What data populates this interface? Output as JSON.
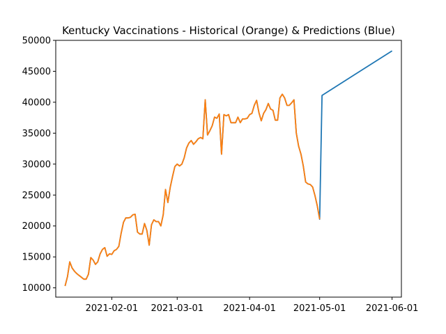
{
  "chart_data": {
    "type": "line",
    "title": "Kentucky Vaccinations - Historical (Orange) & Predictions (Blue)",
    "xlabel": "",
    "ylabel": "",
    "x_axis_type": "date",
    "xlim": [
      "2021-01-08",
      "2021-06-05"
    ],
    "ylim": [
      8500,
      50000
    ],
    "x_ticks": [
      "2021-02-01",
      "2021-03-01",
      "2021-04-01",
      "2021-05-01",
      "2021-06-01"
    ],
    "y_ticks": [
      10000,
      15000,
      20000,
      25000,
      30000,
      35000,
      40000,
      45000,
      50000
    ],
    "grid": false,
    "legend": "none",
    "series": [
      {
        "color": "#1f77b4",
        "points": [
          [
            "2021-01-12",
            10300
          ],
          [
            "2021-01-13",
            11800
          ],
          [
            "2021-01-14",
            14200
          ],
          [
            "2021-01-15",
            13200
          ],
          [
            "2021-01-16",
            12700
          ],
          [
            "2021-01-17",
            12300
          ],
          [
            "2021-01-18",
            12000
          ],
          [
            "2021-01-19",
            11700
          ],
          [
            "2021-01-20",
            11400
          ],
          [
            "2021-01-21",
            11400
          ],
          [
            "2021-01-22",
            12200
          ],
          [
            "2021-01-23",
            14900
          ],
          [
            "2021-01-24",
            14500
          ],
          [
            "2021-01-25",
            13800
          ],
          [
            "2021-01-26",
            14200
          ],
          [
            "2021-01-27",
            15500
          ],
          [
            "2021-01-28",
            16200
          ],
          [
            "2021-01-29",
            16500
          ],
          [
            "2021-01-30",
            15100
          ],
          [
            "2021-01-31",
            15500
          ],
          [
            "2021-02-01",
            15400
          ],
          [
            "2021-02-02",
            16000
          ],
          [
            "2021-02-03",
            16200
          ],
          [
            "2021-02-04",
            16700
          ],
          [
            "2021-02-05",
            18800
          ],
          [
            "2021-02-06",
            20600
          ],
          [
            "2021-02-07",
            21300
          ],
          [
            "2021-02-08",
            21300
          ],
          [
            "2021-02-09",
            21400
          ],
          [
            "2021-02-10",
            21800
          ],
          [
            "2021-02-11",
            21900
          ],
          [
            "2021-02-12",
            19000
          ],
          [
            "2021-02-13",
            18700
          ],
          [
            "2021-02-14",
            18700
          ],
          [
            "2021-02-15",
            20400
          ],
          [
            "2021-02-16",
            19300
          ],
          [
            "2021-02-17",
            16900
          ],
          [
            "2021-02-18",
            20200
          ],
          [
            "2021-02-19",
            21000
          ],
          [
            "2021-02-20",
            20700
          ],
          [
            "2021-02-21",
            20700
          ],
          [
            "2021-02-22",
            20000
          ],
          [
            "2021-02-23",
            21800
          ],
          [
            "2021-02-24",
            25900
          ],
          [
            "2021-02-25",
            23800
          ],
          [
            "2021-02-26",
            26200
          ],
          [
            "2021-02-27",
            28000
          ],
          [
            "2021-02-28",
            29600
          ],
          [
            "2021-03-01",
            30000
          ],
          [
            "2021-03-02",
            29700
          ],
          [
            "2021-03-03",
            30000
          ],
          [
            "2021-03-04",
            31000
          ],
          [
            "2021-03-05",
            32600
          ],
          [
            "2021-03-06",
            33400
          ],
          [
            "2021-03-07",
            33800
          ],
          [
            "2021-03-08",
            33200
          ],
          [
            "2021-03-09",
            33600
          ],
          [
            "2021-03-10",
            34100
          ],
          [
            "2021-03-11",
            34300
          ],
          [
            "2021-03-12",
            34100
          ],
          [
            "2021-03-13",
            40400
          ],
          [
            "2021-03-14",
            34700
          ],
          [
            "2021-03-15",
            35400
          ],
          [
            "2021-03-16",
            36200
          ],
          [
            "2021-03-17",
            37600
          ],
          [
            "2021-03-18",
            37400
          ],
          [
            "2021-03-19",
            38100
          ],
          [
            "2021-03-20",
            31600
          ],
          [
            "2021-03-21",
            38000
          ],
          [
            "2021-03-22",
            37800
          ],
          [
            "2021-03-23",
            38000
          ],
          [
            "2021-03-24",
            36700
          ],
          [
            "2021-03-25",
            36700
          ],
          [
            "2021-03-26",
            36700
          ],
          [
            "2021-03-27",
            37600
          ],
          [
            "2021-03-28",
            36700
          ],
          [
            "2021-03-29",
            37300
          ],
          [
            "2021-03-30",
            37300
          ],
          [
            "2021-03-31",
            37400
          ],
          [
            "2021-04-01",
            38000
          ],
          [
            "2021-04-02",
            38200
          ],
          [
            "2021-04-03",
            39500
          ],
          [
            "2021-04-04",
            40300
          ],
          [
            "2021-04-05",
            38300
          ],
          [
            "2021-04-06",
            37000
          ],
          [
            "2021-04-07",
            38200
          ],
          [
            "2021-04-08",
            38800
          ],
          [
            "2021-04-09",
            39800
          ],
          [
            "2021-04-10",
            38900
          ],
          [
            "2021-04-11",
            38700
          ],
          [
            "2021-04-12",
            37100
          ],
          [
            "2021-04-13",
            37100
          ],
          [
            "2021-04-14",
            40700
          ],
          [
            "2021-04-15",
            41300
          ],
          [
            "2021-04-16",
            40700
          ],
          [
            "2021-04-17",
            39500
          ],
          [
            "2021-04-18",
            39500
          ],
          [
            "2021-04-19",
            39900
          ],
          [
            "2021-04-20",
            40400
          ],
          [
            "2021-04-21",
            35000
          ],
          [
            "2021-04-22",
            32900
          ],
          [
            "2021-04-23",
            31600
          ],
          [
            "2021-04-24",
            29700
          ],
          [
            "2021-04-25",
            27100
          ],
          [
            "2021-04-26",
            26800
          ],
          [
            "2021-04-27",
            26700
          ],
          [
            "2021-04-28",
            26300
          ],
          [
            "2021-04-29",
            24900
          ],
          [
            "2021-04-30",
            23200
          ],
          [
            "2021-05-01",
            21100
          ],
          [
            "2021-05-02",
            41100
          ],
          [
            "2021-06-01",
            48300
          ]
        ]
      },
      {
        "color": "#ff7f0e",
        "points": [
          [
            "2021-01-12",
            10300
          ],
          [
            "2021-01-13",
            11800
          ],
          [
            "2021-01-14",
            14200
          ],
          [
            "2021-01-15",
            13200
          ],
          [
            "2021-01-16",
            12700
          ],
          [
            "2021-01-17",
            12300
          ],
          [
            "2021-01-18",
            12000
          ],
          [
            "2021-01-19",
            11700
          ],
          [
            "2021-01-20",
            11400
          ],
          [
            "2021-01-21",
            11400
          ],
          [
            "2021-01-22",
            12200
          ],
          [
            "2021-01-23",
            14900
          ],
          [
            "2021-01-24",
            14500
          ],
          [
            "2021-01-25",
            13800
          ],
          [
            "2021-01-26",
            14200
          ],
          [
            "2021-01-27",
            15500
          ],
          [
            "2021-01-28",
            16200
          ],
          [
            "2021-01-29",
            16500
          ],
          [
            "2021-01-30",
            15100
          ],
          [
            "2021-01-31",
            15500
          ],
          [
            "2021-02-01",
            15400
          ],
          [
            "2021-02-02",
            16000
          ],
          [
            "2021-02-03",
            16200
          ],
          [
            "2021-02-04",
            16700
          ],
          [
            "2021-02-05",
            18800
          ],
          [
            "2021-02-06",
            20600
          ],
          [
            "2021-02-07",
            21300
          ],
          [
            "2021-02-08",
            21300
          ],
          [
            "2021-02-09",
            21400
          ],
          [
            "2021-02-10",
            21800
          ],
          [
            "2021-02-11",
            21900
          ],
          [
            "2021-02-12",
            19000
          ],
          [
            "2021-02-13",
            18700
          ],
          [
            "2021-02-14",
            18700
          ],
          [
            "2021-02-15",
            20400
          ],
          [
            "2021-02-16",
            19300
          ],
          [
            "2021-02-17",
            16900
          ],
          [
            "2021-02-18",
            20200
          ],
          [
            "2021-02-19",
            21000
          ],
          [
            "2021-02-20",
            20700
          ],
          [
            "2021-02-21",
            20700
          ],
          [
            "2021-02-22",
            20000
          ],
          [
            "2021-02-23",
            21800
          ],
          [
            "2021-02-24",
            25900
          ],
          [
            "2021-02-25",
            23800
          ],
          [
            "2021-02-26",
            26200
          ],
          [
            "2021-02-27",
            28000
          ],
          [
            "2021-02-28",
            29600
          ],
          [
            "2021-03-01",
            30000
          ],
          [
            "2021-03-02",
            29700
          ],
          [
            "2021-03-03",
            30000
          ],
          [
            "2021-03-04",
            31000
          ],
          [
            "2021-03-05",
            32600
          ],
          [
            "2021-03-06",
            33400
          ],
          [
            "2021-03-07",
            33800
          ],
          [
            "2021-03-08",
            33200
          ],
          [
            "2021-03-09",
            33600
          ],
          [
            "2021-03-10",
            34100
          ],
          [
            "2021-03-11",
            34300
          ],
          [
            "2021-03-12",
            34100
          ],
          [
            "2021-03-13",
            40400
          ],
          [
            "2021-03-14",
            34700
          ],
          [
            "2021-03-15",
            35400
          ],
          [
            "2021-03-16",
            36200
          ],
          [
            "2021-03-17",
            37600
          ],
          [
            "2021-03-18",
            37400
          ],
          [
            "2021-03-19",
            38100
          ],
          [
            "2021-03-20",
            31600
          ],
          [
            "2021-03-21",
            38000
          ],
          [
            "2021-03-22",
            37800
          ],
          [
            "2021-03-23",
            38000
          ],
          [
            "2021-03-24",
            36700
          ],
          [
            "2021-03-25",
            36700
          ],
          [
            "2021-03-26",
            36700
          ],
          [
            "2021-03-27",
            37600
          ],
          [
            "2021-03-28",
            36700
          ],
          [
            "2021-03-29",
            37300
          ],
          [
            "2021-03-30",
            37300
          ],
          [
            "2021-03-31",
            37400
          ],
          [
            "2021-04-01",
            38000
          ],
          [
            "2021-04-02",
            38200
          ],
          [
            "2021-04-03",
            39500
          ],
          [
            "2021-04-04",
            40300
          ],
          [
            "2021-04-05",
            38300
          ],
          [
            "2021-04-06",
            37000
          ],
          [
            "2021-04-07",
            38200
          ],
          [
            "2021-04-08",
            38800
          ],
          [
            "2021-04-09",
            39800
          ],
          [
            "2021-04-10",
            38900
          ],
          [
            "2021-04-11",
            38700
          ],
          [
            "2021-04-12",
            37100
          ],
          [
            "2021-04-13",
            37100
          ],
          [
            "2021-04-14",
            40700
          ],
          [
            "2021-04-15",
            41300
          ],
          [
            "2021-04-16",
            40700
          ],
          [
            "2021-04-17",
            39500
          ],
          [
            "2021-04-18",
            39500
          ],
          [
            "2021-04-19",
            39900
          ],
          [
            "2021-04-20",
            40400
          ],
          [
            "2021-04-21",
            35000
          ],
          [
            "2021-04-22",
            32900
          ],
          [
            "2021-04-23",
            31600
          ],
          [
            "2021-04-24",
            29700
          ],
          [
            "2021-04-25",
            27100
          ],
          [
            "2021-04-26",
            26800
          ],
          [
            "2021-04-27",
            26700
          ],
          [
            "2021-04-28",
            26300
          ],
          [
            "2021-04-29",
            24900
          ],
          [
            "2021-04-30",
            23200
          ],
          [
            "2021-05-01",
            21100
          ]
        ]
      }
    ]
  }
}
